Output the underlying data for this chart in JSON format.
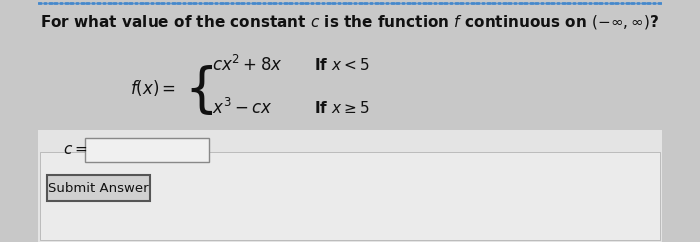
{
  "bg_top": "#c8c8c8",
  "bg_bottom": "#e8e8e8",
  "top_border_color": "#4488cc",
  "title_text": "For what value of the constant $c$ is the function $f$ continuous on $(-\\infty, \\infty)$?",
  "title_fontsize": 11.0,
  "text_color": "#111111",
  "fx_label": "$f(x) =$",
  "piece1": "$cx^2 + 8x$",
  "cond1": "If $x < 5$",
  "piece2": "$x^3 - cx$",
  "cond2": "If $x \\geq 5$",
  "c_label": "$c =$",
  "submit_text": "Submit Answer",
  "input_box_face": "#f0f0f0",
  "input_box_edge": "#888888",
  "submit_face": "#d0d0d0",
  "submit_edge": "#555555",
  "white_panel_face": "#e4e4e4",
  "white_panel_edge": "#aaaaaa"
}
